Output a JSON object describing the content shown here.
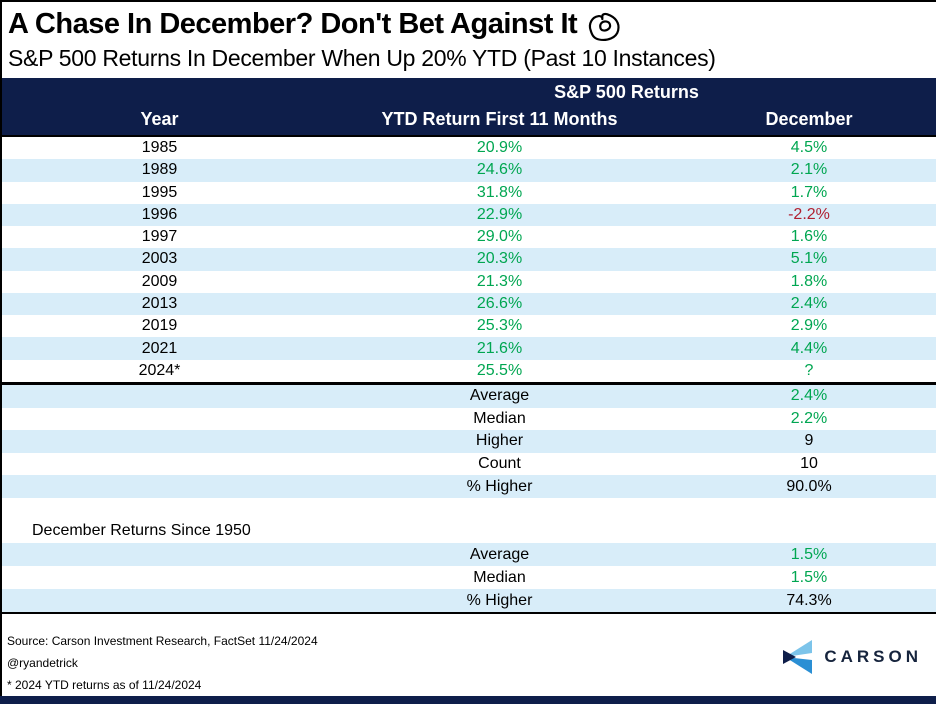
{
  "header": {
    "title": "A Chase In December? Don't Bet Against It",
    "title_icon": "flexed-biceps",
    "subtitle": "S&P 500 Returns In December When Up 20% YTD (Past 10 Instances)"
  },
  "table": {
    "group_header": "S&P 500 Returns",
    "columns": [
      "Year",
      "YTD Return First 11 Months",
      "December"
    ],
    "rows": [
      {
        "year": "1985",
        "ytd": "20.9%",
        "december": "4.5%",
        "december_color": "green"
      },
      {
        "year": "1989",
        "ytd": "24.6%",
        "december": "2.1%",
        "december_color": "green"
      },
      {
        "year": "1995",
        "ytd": "31.8%",
        "december": "1.7%",
        "december_color": "green"
      },
      {
        "year": "1996",
        "ytd": "22.9%",
        "december": "-2.2%",
        "december_color": "red"
      },
      {
        "year": "1997",
        "ytd": "29.0%",
        "december": "1.6%",
        "december_color": "green"
      },
      {
        "year": "2003",
        "ytd": "20.3%",
        "december": "5.1%",
        "december_color": "green"
      },
      {
        "year": "2009",
        "ytd": "21.3%",
        "december": "1.8%",
        "december_color": "green"
      },
      {
        "year": "2013",
        "ytd": "26.6%",
        "december": "2.4%",
        "december_color": "green"
      },
      {
        "year": "2019",
        "ytd": "25.3%",
        "december": "2.9%",
        "december_color": "green"
      },
      {
        "year": "2021",
        "ytd": "21.6%",
        "december": "4.4%",
        "december_color": "green"
      },
      {
        "year": "2024*",
        "ytd": "25.5%",
        "december": "?",
        "december_color": "green"
      }
    ],
    "summary": [
      {
        "label": "Average",
        "value": "2.4%",
        "color": "green"
      },
      {
        "label": "Median",
        "value": "2.2%",
        "color": "green"
      },
      {
        "label": "Higher",
        "value": "9",
        "color": "black"
      },
      {
        "label": "Count",
        "value": "10",
        "color": "black"
      },
      {
        "label": "% Higher",
        "value": "90.0%",
        "color": "black"
      }
    ]
  },
  "since_1950": {
    "title": "December Returns Since 1950",
    "rows": [
      {
        "label": "Average",
        "value": "1.5%",
        "color": "green"
      },
      {
        "label": "Median",
        "value": "1.5%",
        "color": "green"
      },
      {
        "label": "% Higher",
        "value": "74.3%",
        "color": "black"
      }
    ]
  },
  "footer": {
    "source": "Source: Carson Investment Research, FactSet 11/24/2024",
    "handle": "@ryandetrick",
    "footnote": "* 2024 YTD returns as of 11/24/2024",
    "logo_text": "CARSON"
  },
  "colors": {
    "navy": "#0e1e4a",
    "row_blue": "#d8edf9",
    "green": "#00a651",
    "red": "#b02031",
    "logo_light_blue": "#7cc4ea",
    "logo_mid_blue": "#2a8fd4"
  },
  "chart_data": {
    "type": "table",
    "title": "A Chase In December? Don't Bet Against It",
    "subtitle": "S&P 500 Returns In December When Up 20% YTD (Past 10 Instances)",
    "group_header": "S&P 500 Returns",
    "columns": [
      "Year",
      "YTD Return First 11 Months (%)",
      "December (%)"
    ],
    "rows": [
      [
        "1985",
        20.9,
        4.5
      ],
      [
        "1989",
        24.6,
        2.1
      ],
      [
        "1995",
        31.8,
        1.7
      ],
      [
        "1996",
        22.9,
        -2.2
      ],
      [
        "1997",
        29.0,
        1.6
      ],
      [
        "2003",
        20.3,
        5.1
      ],
      [
        "2009",
        21.3,
        1.8
      ],
      [
        "2013",
        26.6,
        2.4
      ],
      [
        "2019",
        25.3,
        2.9
      ],
      [
        "2021",
        21.6,
        4.4
      ],
      [
        "2024*",
        25.5,
        null
      ]
    ],
    "summary": {
      "average_pct": 2.4,
      "median_pct": 2.2,
      "higher": 9,
      "count": 10,
      "pct_higher": 90.0
    },
    "december_since_1950": {
      "average_pct": 1.5,
      "median_pct": 1.5,
      "pct_higher": 74.3
    },
    "layout": {
      "negative_color": "red",
      "positive_color": "green",
      "zebra_striping": true
    }
  }
}
